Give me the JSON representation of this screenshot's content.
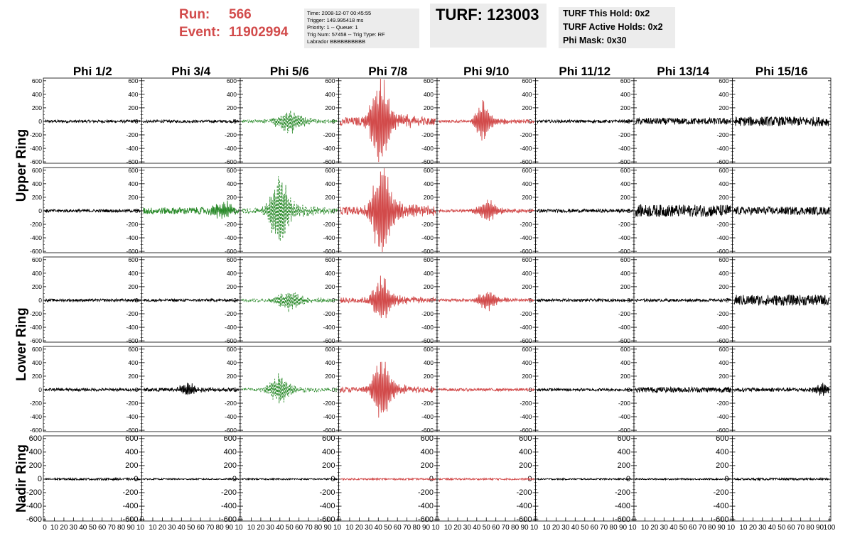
{
  "header": {
    "run_label": "Run:",
    "run_value": "566",
    "event_label": "Event:",
    "event_value": "11902994",
    "info_lines": [
      "Time: 2008-12-07 00:45:55",
      "Trigger: 149.995418 ms",
      "Priority: 1 -- Queue: 1",
      "Trig Num: 57458 -- Trig Type: RF",
      "Labrador BBBBBBBBBB"
    ],
    "turf_text": "TURF: 123003",
    "hold_lines": [
      "TURF This Hold: 0x2",
      "TURF Active Holds: 0x2",
      "Phi Mask: 0x30"
    ]
  },
  "colors": {
    "red": "#d24b4b",
    "black": "#000000",
    "green": "#2a8a2a",
    "panel_bg": "#ececec"
  },
  "chart_data": {
    "type": "line",
    "columns": [
      "Phi 1/2",
      "Phi 3/4",
      "Phi 5/6",
      "Phi 7/8",
      "Phi 9/10",
      "Phi 11/12",
      "Phi 13/14",
      "Phi 15/16"
    ],
    "rows": [
      "Upper Ring",
      "Upper Ring",
      "Lower Ring",
      "Lower Ring",
      "Nadir Ring"
    ],
    "row_labels": [
      {
        "text": "Upper Ring",
        "rows": [
          0,
          1
        ]
      },
      {
        "text": "Lower Ring",
        "rows": [
          2,
          3
        ]
      },
      {
        "text": "Nadir Ring",
        "rows": [
          4
        ]
      }
    ],
    "ylim": [
      -620,
      640
    ],
    "y_ticks": [
      "600",
      "400",
      "200",
      "0",
      "-200",
      "-400",
      "-600"
    ],
    "y_tick_values": [
      600,
      400,
      200,
      0,
      -200,
      -400,
      -600
    ],
    "xlim": [
      0,
      100
    ],
    "x_tick_labels": [
      "0",
      "10",
      "20",
      "30",
      "40",
      "50",
      "60",
      "70",
      "80",
      "90",
      "10"
    ],
    "x_tick_labels_last": [
      "0",
      "10",
      "20",
      "30",
      "40",
      "50",
      "60",
      "70",
      "80",
      "90",
      "100"
    ],
    "series": [
      [
        {
          "color": "black",
          "dashed": false,
          "noise": 20,
          "pulse": 0,
          "center": 50,
          "width": 10
        },
        {
          "color": "black",
          "dashed": false,
          "noise": 20,
          "pulse": 0,
          "center": 50,
          "width": 10
        },
        {
          "color": "green",
          "dashed": true,
          "noise": 25,
          "pulse": 150,
          "center": 48,
          "width": 15
        },
        {
          "color": "red",
          "dashed": false,
          "noise": 60,
          "pulse": 620,
          "center": 40,
          "width": 10
        },
        {
          "color": "red",
          "dashed": false,
          "noise": 20,
          "pulse": 260,
          "center": 45,
          "width": 8
        },
        {
          "color": "black",
          "dashed": false,
          "noise": 20,
          "pulse": 0,
          "center": 50,
          "width": 10
        },
        {
          "color": "black",
          "dashed": false,
          "noise": 50,
          "pulse": 0,
          "center": 50,
          "width": 10
        },
        {
          "color": "black",
          "dashed": false,
          "noise": 70,
          "pulse": 0,
          "center": 50,
          "width": 10
        }
      ],
      [
        {
          "color": "black",
          "dashed": false,
          "noise": 22,
          "pulse": 0,
          "center": 50,
          "width": 10
        },
        {
          "color": "green",
          "dashed": false,
          "noise": 50,
          "pulse": 120,
          "center": 82,
          "width": 10
        },
        {
          "color": "green",
          "dashed": true,
          "noise": 40,
          "pulse": 500,
          "center": 38,
          "width": 10
        },
        {
          "color": "red",
          "dashed": false,
          "noise": 60,
          "pulse": 640,
          "center": 42,
          "width": 10
        },
        {
          "color": "red",
          "dashed": false,
          "noise": 20,
          "pulse": 150,
          "center": 50,
          "width": 10
        },
        {
          "color": "black",
          "dashed": false,
          "noise": 25,
          "pulse": 0,
          "center": 50,
          "width": 10
        },
        {
          "color": "black",
          "dashed": false,
          "noise": 90,
          "pulse": 0,
          "center": 50,
          "width": 10
        },
        {
          "color": "black",
          "dashed": false,
          "noise": 60,
          "pulse": 0,
          "center": 50,
          "width": 10
        }
      ],
      [
        {
          "color": "black",
          "dashed": false,
          "noise": 20,
          "pulse": 0,
          "center": 50,
          "width": 10
        },
        {
          "color": "black",
          "dashed": false,
          "noise": 20,
          "pulse": 0,
          "center": 50,
          "width": 10
        },
        {
          "color": "green",
          "dashed": true,
          "noise": 25,
          "pulse": 130,
          "center": 48,
          "width": 15
        },
        {
          "color": "red",
          "dashed": false,
          "noise": 40,
          "pulse": 300,
          "center": 42,
          "width": 10
        },
        {
          "color": "red",
          "dashed": false,
          "noise": 20,
          "pulse": 130,
          "center": 50,
          "width": 10
        },
        {
          "color": "black",
          "dashed": false,
          "noise": 20,
          "pulse": 0,
          "center": 50,
          "width": 10
        },
        {
          "color": "black",
          "dashed": false,
          "noise": 20,
          "pulse": 0,
          "center": 50,
          "width": 10
        },
        {
          "color": "black",
          "dashed": false,
          "noise": 80,
          "pulse": 0,
          "center": 50,
          "width": 10
        }
      ],
      [
        {
          "color": "black",
          "dashed": false,
          "noise": 20,
          "pulse": 0,
          "center": 50,
          "width": 10
        },
        {
          "color": "black",
          "dashed": false,
          "noise": 25,
          "pulse": 80,
          "center": 45,
          "width": 10
        },
        {
          "color": "green",
          "dashed": true,
          "noise": 25,
          "pulse": 180,
          "center": 38,
          "width": 12
        },
        {
          "color": "red",
          "dashed": false,
          "noise": 40,
          "pulse": 420,
          "center": 42,
          "width": 10
        },
        {
          "color": "red",
          "dashed": false,
          "noise": 20,
          "pulse": 0,
          "center": 50,
          "width": 10
        },
        {
          "color": "black",
          "dashed": false,
          "noise": 20,
          "pulse": 0,
          "center": 50,
          "width": 10
        },
        {
          "color": "black",
          "dashed": false,
          "noise": 40,
          "pulse": 0,
          "center": 50,
          "width": 10
        },
        {
          "color": "black",
          "dashed": false,
          "noise": 30,
          "pulse": 80,
          "center": 92,
          "width": 8
        }
      ],
      [
        {
          "color": "black",
          "dashed": false,
          "noise": 15,
          "pulse": 0,
          "center": 50,
          "width": 10
        },
        {
          "color": "black",
          "dashed": false,
          "noise": 10,
          "pulse": 0,
          "center": 50,
          "width": 10
        },
        {
          "color": "black",
          "dashed": false,
          "noise": 10,
          "pulse": 0,
          "center": 50,
          "width": 10
        },
        {
          "color": "red",
          "dashed": false,
          "noise": 12,
          "pulse": 0,
          "center": 50,
          "width": 10
        },
        {
          "color": "red",
          "dashed": false,
          "noise": 12,
          "pulse": 0,
          "center": 50,
          "width": 10
        },
        {
          "color": "black",
          "dashed": false,
          "noise": 10,
          "pulse": 0,
          "center": 50,
          "width": 10
        },
        {
          "color": "black",
          "dashed": false,
          "noise": 10,
          "pulse": 0,
          "center": 50,
          "width": 10
        },
        {
          "color": "black",
          "dashed": false,
          "noise": 15,
          "pulse": 0,
          "center": 50,
          "width": 10
        }
      ]
    ]
  }
}
